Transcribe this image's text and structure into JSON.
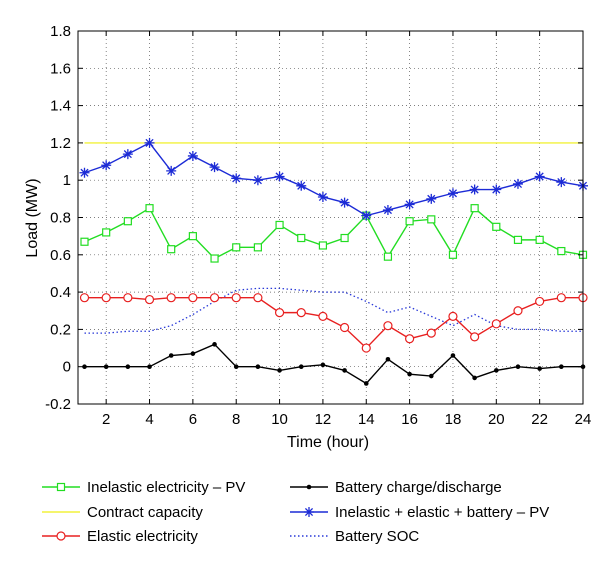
{
  "chart_data": {
    "type": "line",
    "xlabel": "Time (hour)",
    "ylabel": "Load (MW)",
    "xlim": [
      0.7,
      24
    ],
    "ylim": [
      -0.2,
      1.8
    ],
    "x_ticks": [
      2,
      4,
      6,
      8,
      10,
      12,
      14,
      16,
      18,
      20,
      22,
      24
    ],
    "y_ticks": [
      -0.2,
      0,
      0.2,
      0.4,
      0.6,
      0.8,
      1,
      1.2,
      1.4,
      1.6,
      1.8
    ],
    "grid": "dotted",
    "legend_placement": "below",
    "x": [
      1,
      2,
      3,
      4,
      5,
      6,
      7,
      8,
      9,
      10,
      11,
      12,
      13,
      14,
      15,
      16,
      17,
      18,
      19,
      20,
      21,
      22,
      23,
      24
    ],
    "series": [
      {
        "name": "Inelastic electricity – PV",
        "color": "#22dd22",
        "marker": "square",
        "line_style": "solid",
        "values": [
          0.67,
          0.72,
          0.78,
          0.85,
          0.63,
          0.7,
          0.58,
          0.64,
          0.64,
          0.76,
          0.69,
          0.65,
          0.69,
          0.81,
          0.59,
          0.78,
          0.79,
          0.6,
          0.85,
          0.75,
          0.68,
          0.68,
          0.62,
          0.6
        ]
      },
      {
        "name": "Contract capacity",
        "color": "#f2f23c",
        "marker": "none",
        "line_style": "solid",
        "values": [
          1.2,
          1.2,
          1.2,
          1.2,
          1.2,
          1.2,
          1.2,
          1.2,
          1.2,
          1.2,
          1.2,
          1.2,
          1.2,
          1.2,
          1.2,
          1.2,
          1.2,
          1.2,
          1.2,
          1.2,
          1.2,
          1.2,
          1.2,
          1.2
        ]
      },
      {
        "name": "Elastic electricity",
        "color": "#e82020",
        "marker": "circle",
        "line_style": "solid",
        "values": [
          0.37,
          0.37,
          0.37,
          0.36,
          0.37,
          0.37,
          0.37,
          0.37,
          0.37,
          0.29,
          0.29,
          0.27,
          0.21,
          0.1,
          0.22,
          0.15,
          0.18,
          0.27,
          0.16,
          0.23,
          0.3,
          0.35,
          0.37,
          0.37
        ]
      },
      {
        "name": "Battery charge/discharge",
        "color": "#000000",
        "marker": "dot",
        "line_style": "solid",
        "values": [
          0,
          0,
          0,
          0,
          0.06,
          0.07,
          0.12,
          0,
          0,
          -0.02,
          0,
          0.01,
          -0.02,
          -0.09,
          0.04,
          -0.04,
          -0.05,
          0.06,
          -0.06,
          -0.02,
          0,
          -0.01,
          0,
          0
        ]
      },
      {
        "name": "Inelastic + elastic + battery – PV",
        "color": "#1c2bd6",
        "marker": "star",
        "line_style": "solid",
        "values": [
          1.04,
          1.08,
          1.14,
          1.2,
          1.05,
          1.13,
          1.07,
          1.01,
          1.0,
          1.02,
          0.97,
          0.91,
          0.88,
          0.81,
          0.84,
          0.87,
          0.9,
          0.93,
          0.95,
          0.95,
          0.98,
          1.02,
          0.99,
          0.97
        ]
      },
      {
        "name": "Battery SOC",
        "color": "#2838d8",
        "marker": "none",
        "line_style": "dotted",
        "values": [
          0.18,
          0.18,
          0.19,
          0.19,
          0.22,
          0.28,
          0.35,
          0.41,
          0.42,
          0.42,
          0.41,
          0.4,
          0.4,
          0.35,
          0.29,
          0.32,
          0.27,
          0.22,
          0.28,
          0.22,
          0.2,
          0.2,
          0.19,
          0.19
        ]
      }
    ]
  }
}
